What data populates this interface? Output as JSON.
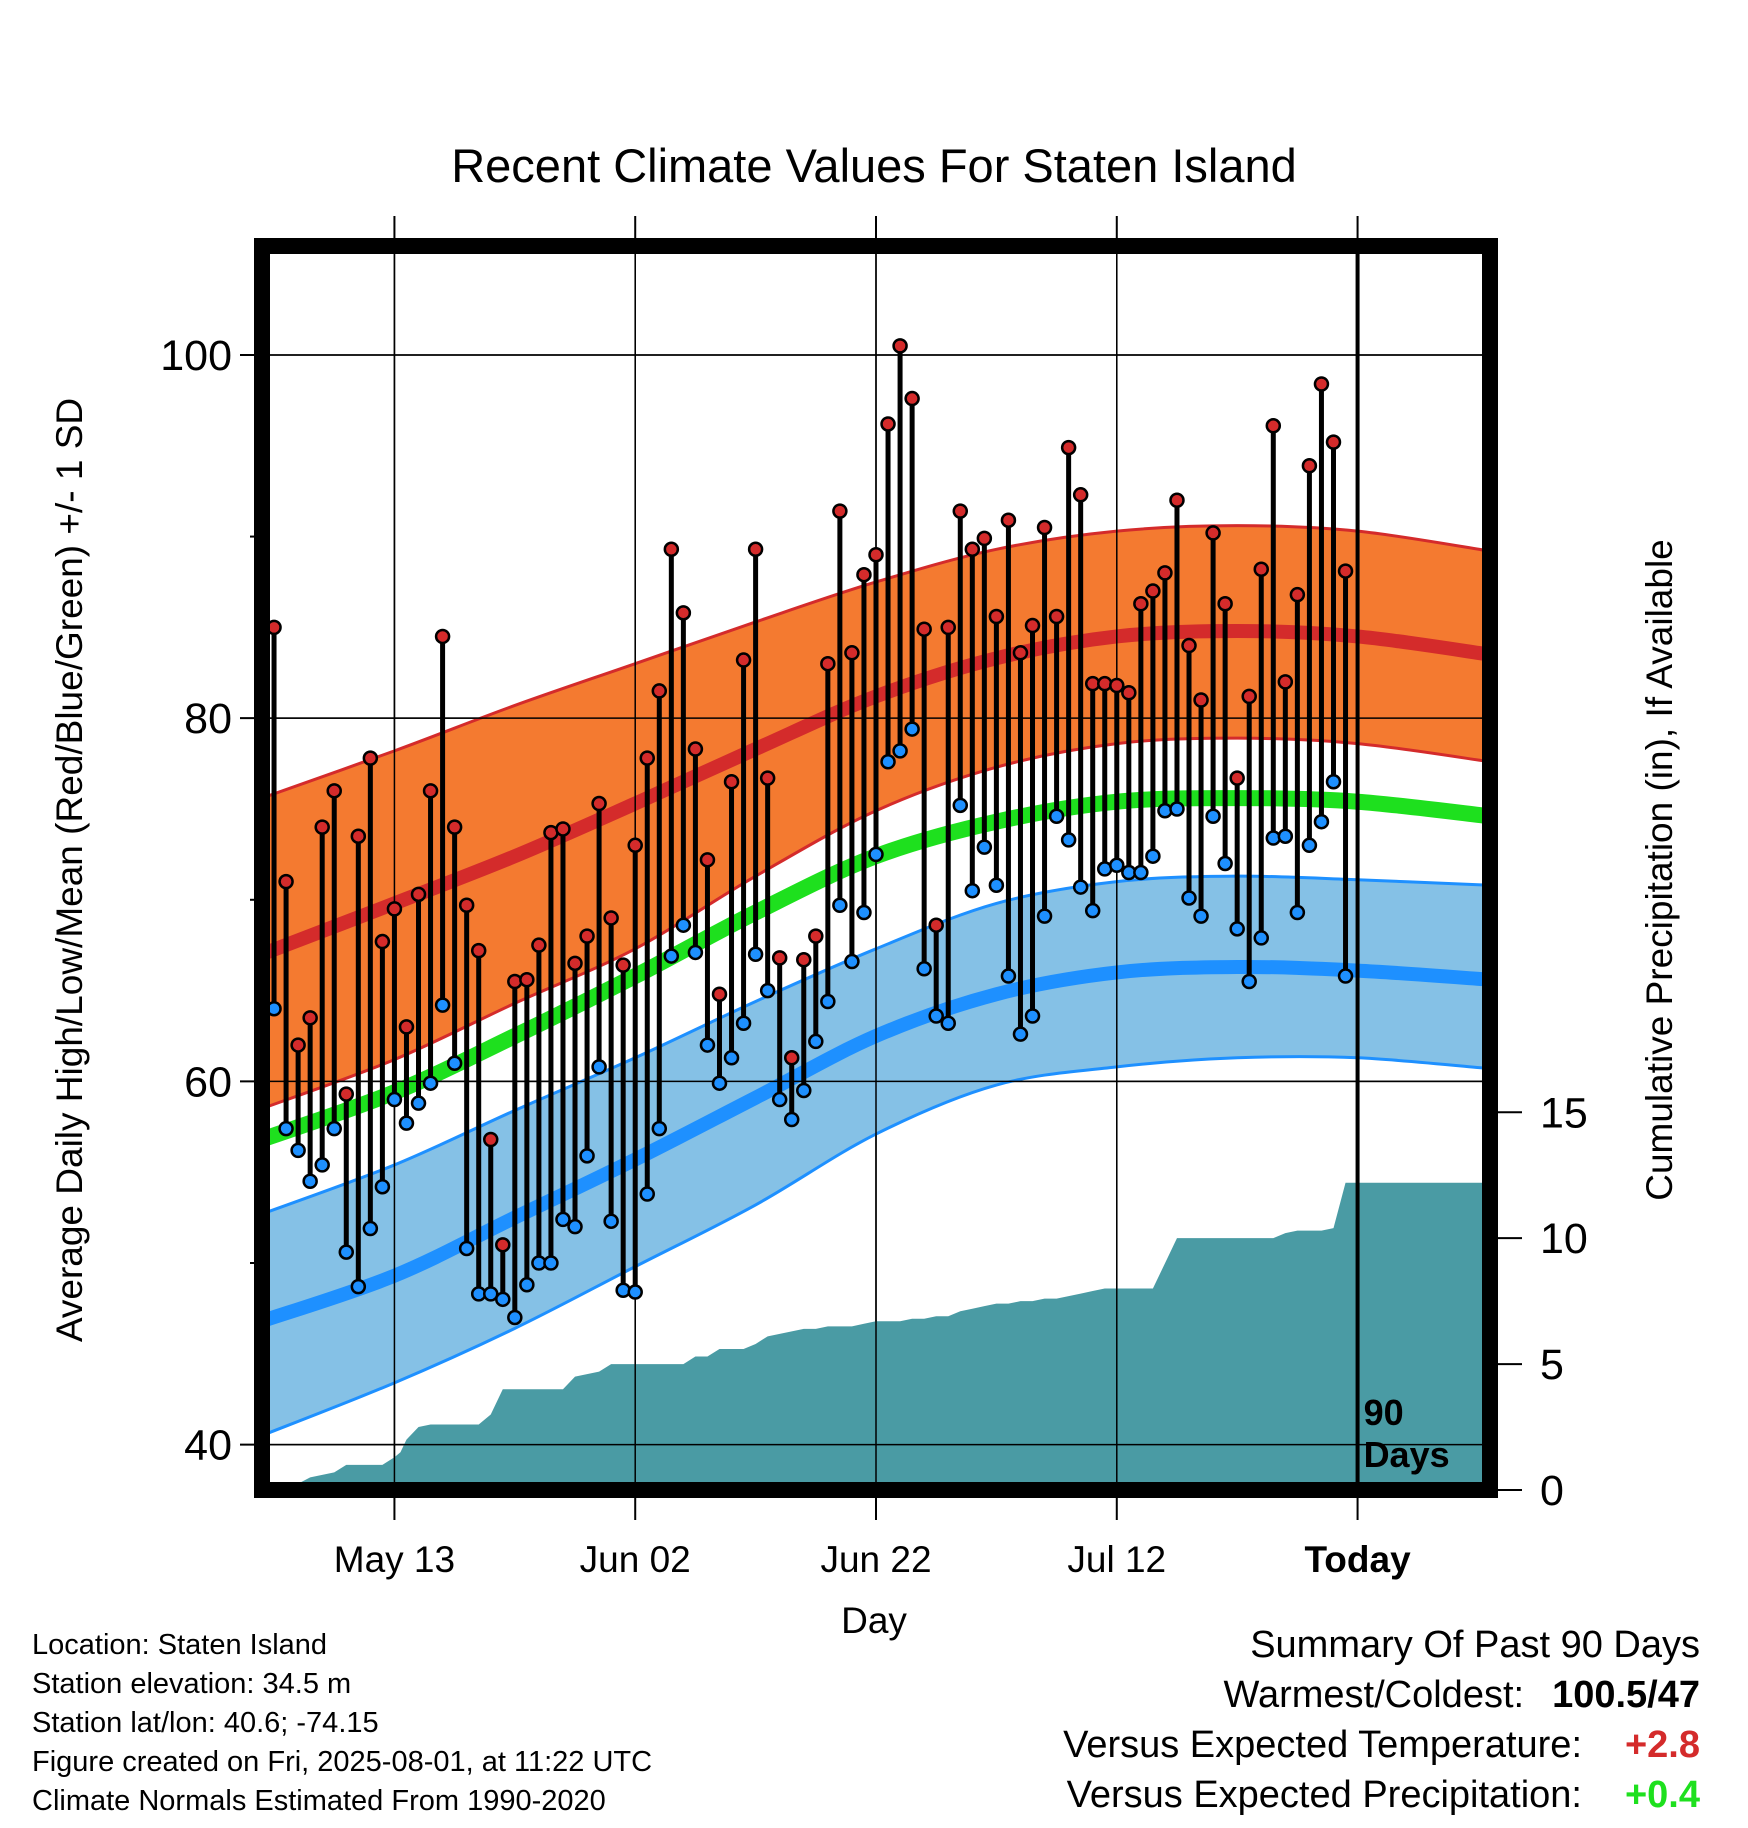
{
  "chart_data": {
    "type": "line",
    "title": "Recent Climate Values For Staten Island",
    "xlabel": "Day",
    "ylabel": "Average Daily High/Low/Mean (Red/Blue/Green) +/- 1 SD",
    "y2label": "Cumulative Precipitation (in), If Available",
    "ylim": [
      37.5,
      106
    ],
    "yticks": [
      40,
      60,
      80,
      100
    ],
    "y2lim": [
      0,
      49.4
    ],
    "y2ticks": [
      0,
      5,
      10,
      15
    ],
    "xlim": [
      -11,
      91
    ],
    "x_ticks": [
      {
        "day": 0,
        "label": "May 13"
      },
      {
        "day": 20,
        "label": "Jun 02"
      },
      {
        "day": 40,
        "label": "Jun 22"
      },
      {
        "day": 60,
        "label": "Jul 12"
      },
      {
        "day": 80,
        "label": "Today"
      }
    ],
    "today_marker": {
      "day": 80,
      "label_line1": "90",
      "label_line2": "Days"
    },
    "grid": true,
    "colors": {
      "high_band": "#f47a30",
      "high_mean": "#d42b2b",
      "band_edge_high": "#d42b2b",
      "low_band": "#85c1e6",
      "low_mean": "#1e90ff",
      "band_edge_low": "#1e90ff",
      "mean": "#1ee01e",
      "precip": "#4a9ba4",
      "high_dot": "#d42b2b",
      "low_dot": "#1e90ff"
    },
    "normals": {
      "days": [
        -11,
        0,
        10,
        20,
        30,
        40,
        50,
        60,
        70,
        80,
        91
      ],
      "high_mean": [
        67,
        69.8,
        72.4,
        75.3,
        78.3,
        81.2,
        83.3,
        84.5,
        84.8,
        84.5,
        83.5
      ],
      "high_upper": [
        75.6,
        78.2,
        80.7,
        83.0,
        85.3,
        87.5,
        89.3,
        90.3,
        90.6,
        90.3,
        89.2
      ],
      "high_lower": [
        58.5,
        61.2,
        64.3,
        67.3,
        71.3,
        74.9,
        77.3,
        78.6,
        78.9,
        78.6,
        77.6
      ],
      "mean": [
        56.8,
        59.4,
        62.5,
        65.8,
        69.3,
        72.4,
        74.3,
        75.4,
        75.6,
        75.4,
        74.6
      ],
      "low_mean": [
        46.8,
        49.3,
        52.5,
        55.7,
        59.1,
        62.5,
        64.8,
        66.0,
        66.3,
        66.1,
        65.6
      ],
      "low_upper": [
        52.7,
        55.4,
        58.4,
        61.3,
        64.4,
        67.3,
        69.8,
        71.0,
        71.3,
        71.1,
        70.8
      ],
      "low_lower": [
        40.5,
        43.4,
        46.4,
        49.8,
        53.2,
        57.1,
        59.8,
        60.8,
        61.3,
        61.3,
        60.7
      ]
    },
    "daily": {
      "days": [
        -10,
        -9,
        -8,
        -7,
        -6,
        -5,
        -4,
        -3,
        -2,
        -1,
        0,
        1,
        2,
        3,
        4,
        5,
        6,
        7,
        8,
        9,
        10,
        11,
        12,
        13,
        14,
        15,
        16,
        17,
        18,
        19,
        20,
        21,
        22,
        23,
        24,
        25,
        26,
        27,
        28,
        29,
        30,
        31,
        32,
        33,
        34,
        35,
        36,
        37,
        38,
        39,
        40,
        41,
        42,
        43,
        44,
        45,
        46,
        47,
        48,
        49,
        50,
        51,
        52,
        53,
        54,
        55,
        56,
        57,
        58,
        59,
        60,
        61,
        62,
        63,
        64,
        65,
        66,
        67,
        68,
        69,
        70,
        71,
        72,
        73,
        74,
        75,
        76,
        77,
        78,
        79
      ],
      "high": [
        85,
        71,
        62,
        63.5,
        74,
        76,
        59.3,
        73.5,
        77.8,
        67.7,
        69.5,
        63,
        70.3,
        76,
        84.5,
        74,
        69.7,
        67.2,
        56.8,
        51,
        65.5,
        65.6,
        67.5,
        73.7,
        73.9,
        66.5,
        68,
        75.3,
        69,
        66.4,
        73,
        77.8,
        81.5,
        89.3,
        85.8,
        78.3,
        72.2,
        64.8,
        76.5,
        83.2,
        89.3,
        76.7,
        66.8,
        61.3,
        66.7,
        68,
        83,
        91.4,
        83.6,
        87.9,
        89,
        96.2,
        100.5,
        97.6,
        84.9,
        68.6,
        85,
        91.4,
        89.3,
        89.9,
        85.6,
        90.9,
        83.6,
        85.1,
        90.5,
        85.6,
        94.9,
        92.3,
        81.9,
        81.9,
        81.8,
        81.4,
        86.3,
        87,
        88,
        92,
        84,
        81,
        90.2,
        86.3,
        76.7,
        81.2,
        88.2,
        96.1,
        82,
        86.8,
        93.9,
        98.4,
        95.2,
        88.1
      ],
      "low": [
        64,
        57.4,
        56.2,
        54.5,
        55.4,
        57.4,
        50.6,
        48.7,
        51.9,
        54.2,
        59,
        57.7,
        58.8,
        59.9,
        64.2,
        61,
        50.8,
        48.3,
        48.3,
        48.0,
        47,
        48.8,
        50,
        50,
        52.4,
        52,
        55.9,
        60.8,
        52.3,
        48.5,
        48.4,
        53.8,
        57.4,
        66.9,
        68.6,
        67.1,
        62,
        59.9,
        61.3,
        63.2,
        67,
        65,
        59,
        57.9,
        59.5,
        62.2,
        64.4,
        69.7,
        66.6,
        69.3,
        72.5,
        77.6,
        78.2,
        79.4,
        66.2,
        63.6,
        63.2,
        75.2,
        70.5,
        72.9,
        70.8,
        65.8,
        62.6,
        63.6,
        69.1,
        74.6,
        73.3,
        70.7,
        69.4,
        71.7,
        71.9,
        71.5,
        71.5,
        72.4,
        74.9,
        75,
        70.1,
        69.1,
        74.6,
        72,
        68.4,
        65.5,
        67.9,
        73.4,
        73.5,
        69.3,
        73,
        74.3,
        76.5,
        65.8
      ]
    },
    "precipitation": {
      "days": [
        -11,
        -9,
        -7,
        -5,
        -4,
        -3,
        -2,
        -1,
        0,
        0.5,
        1,
        2,
        3,
        4,
        5,
        6,
        7,
        8,
        9,
        10,
        11,
        12,
        13,
        14,
        15,
        16,
        17,
        18,
        19,
        20,
        21,
        22,
        23,
        24,
        25,
        26,
        27,
        28,
        29,
        30,
        31,
        32,
        33,
        34,
        35,
        36,
        37,
        38,
        39,
        40,
        41,
        42,
        43,
        44,
        45,
        46,
        47,
        48,
        49,
        50,
        51,
        52,
        53,
        54,
        55,
        56,
        57,
        58,
        59,
        60,
        61,
        62,
        63,
        64,
        65,
        66,
        67,
        68,
        69,
        70,
        71,
        72,
        73,
        74,
        75,
        76,
        77,
        78,
        79,
        80,
        91
      ],
      "values": [
        0,
        0,
        0.5,
        0.7,
        1.0,
        1.0,
        1.0,
        1.0,
        1.3,
        1.5,
        2.0,
        2.5,
        2.6,
        2.6,
        2.6,
        2.6,
        2.6,
        3.0,
        4.0,
        4.0,
        4.0,
        4.0,
        4.0,
        4.0,
        4.5,
        4.6,
        4.7,
        5.0,
        5.0,
        5.0,
        5.0,
        5.0,
        5.0,
        5.0,
        5.3,
        5.3,
        5.6,
        5.6,
        5.6,
        5.8,
        6.1,
        6.2,
        6.3,
        6.4,
        6.4,
        6.5,
        6.5,
        6.5,
        6.6,
        6.7,
        6.7,
        6.7,
        6.8,
        6.8,
        6.9,
        6.9,
        7.1,
        7.2,
        7.3,
        7.4,
        7.4,
        7.5,
        7.5,
        7.6,
        7.6,
        7.7,
        7.8,
        7.9,
        8.0,
        8.0,
        8.0,
        8.0,
        8.0,
        9.0,
        10.0,
        10.0,
        10.0,
        10.0,
        10.0,
        10.0,
        10.0,
        10.0,
        10.0,
        10.2,
        10.3,
        10.3,
        10.3,
        10.4,
        12.2,
        12.2,
        12.2
      ],
      "note": ""
    }
  },
  "footer": {
    "location": "Location: Staten Island",
    "elevation": "Station elevation: 34.5 m",
    "latlon": "Station lat/lon: 40.6; -74.15",
    "created": "Figure created on Fri, 2025-08-01, at 11:22 UTC",
    "normals": "Climate Normals Estimated From 1990-2020"
  },
  "summary": {
    "title": "Summary Of Past 90 Days",
    "warmest_label": "Warmest/Coldest:",
    "warmest_value": "100.5/47",
    "temp_label": "Versus Expected Temperature:",
    "temp_value": "+2.8",
    "temp_color": "#d42b2b",
    "precip_label": "Versus Expected Precipitation:",
    "precip_value": "+0.4",
    "precip_color": "#1ee01e"
  }
}
